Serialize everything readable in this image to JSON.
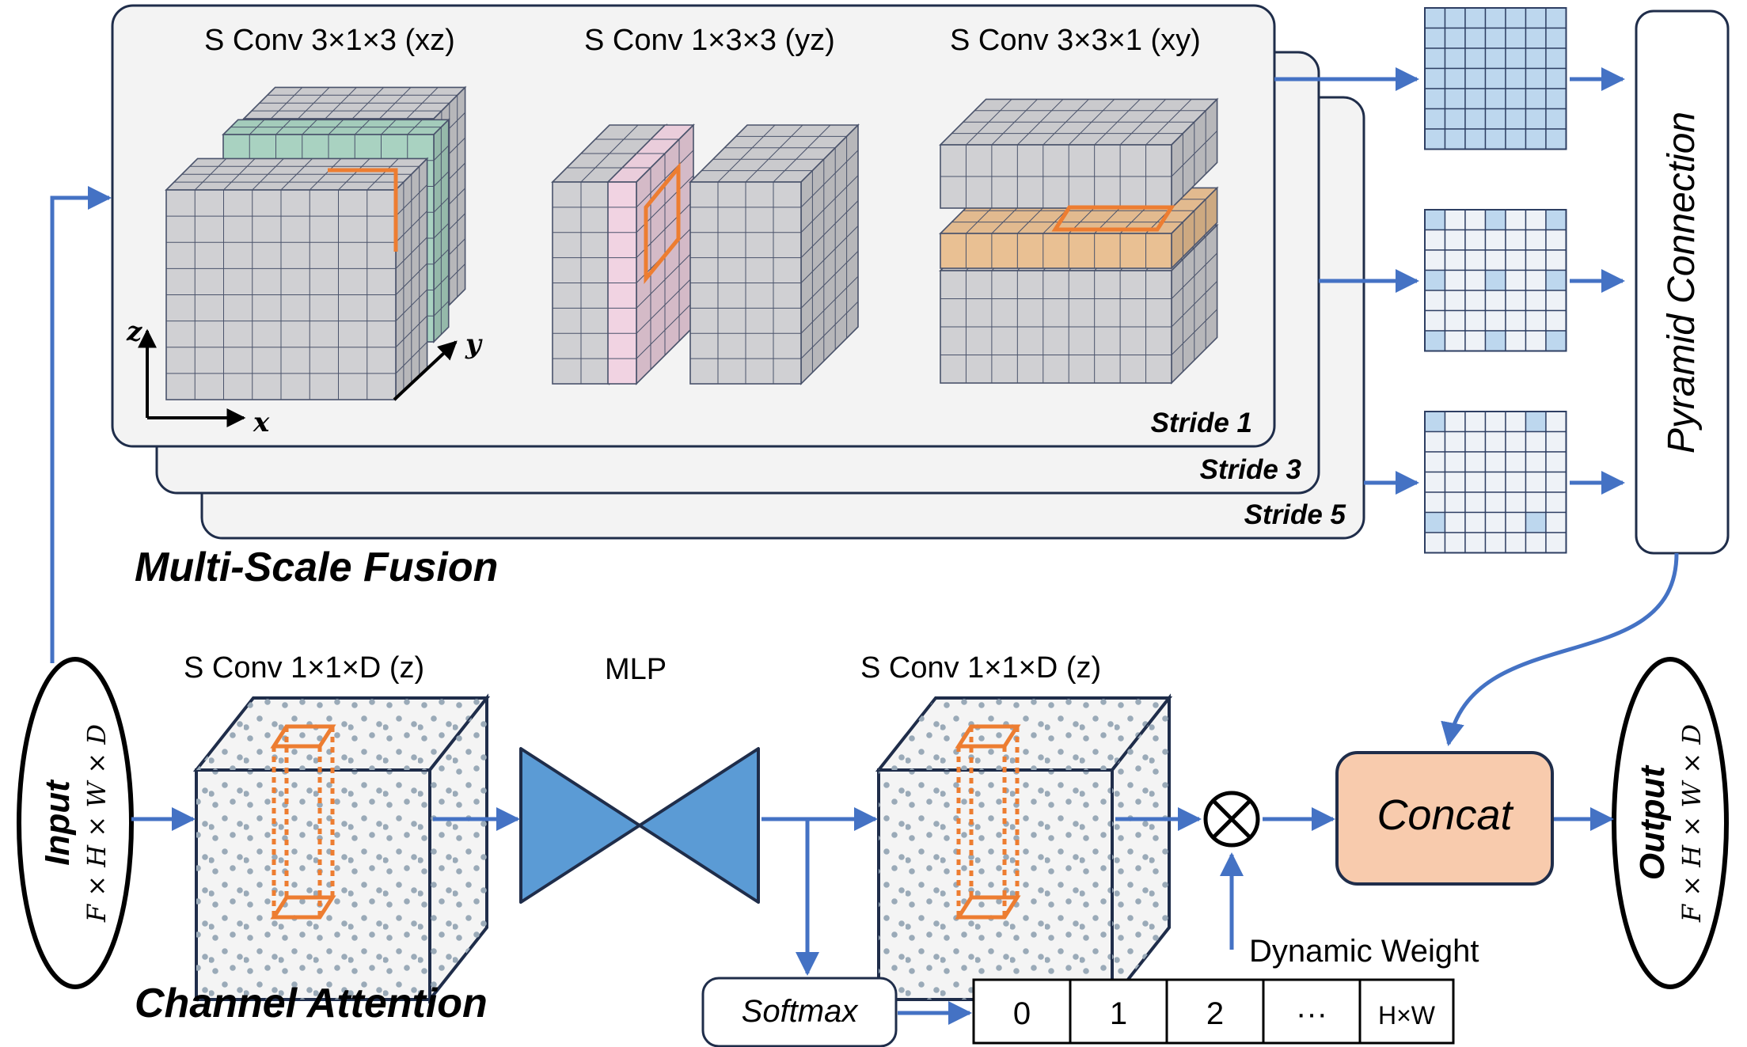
{
  "multi_scale": {
    "section_title": "Multi-Scale Fusion",
    "conv_xz": "S Conv 3×1×3 (xz)",
    "conv_yz": "S Conv 1×3×3 (yz)",
    "conv_xy": "S Conv 3×3×1 (xy)",
    "stride1": "Stride 1",
    "stride3": "Stride 3",
    "stride5": "Stride 5",
    "axis_x": "x",
    "axis_y": "y",
    "axis_z": "z"
  },
  "pyramid": {
    "label": "Pyramid Connection"
  },
  "input": {
    "title": "Input",
    "shape": "F × H × W × D"
  },
  "output": {
    "title": "Output",
    "shape": "F × H × W × D"
  },
  "channel_attention": {
    "section_title": "Channel Attention",
    "conv_left": "S Conv 1×1×D (z)",
    "mlp": "MLP",
    "conv_right": "S Conv 1×1×D (z)",
    "softmax": "Softmax",
    "dynamic_weight": "Dynamic Weight",
    "weights": [
      "0",
      "1",
      "2",
      "···",
      "H×W"
    ],
    "multiply_symbol": "⊗"
  },
  "concat": {
    "label": "Concat"
  },
  "colors": {
    "arrow": "#4472c4",
    "panel_border": "#1f2d4a",
    "cube_grey": "#d0d0d3",
    "green_slice": "#a9d2c1",
    "pink_slice": "#f1d3e2",
    "orange_slice": "#e9c093",
    "kernel_outline": "#ed7d31",
    "grid_fill": "#bdd7ee",
    "mlp_fill": "#5b9bd5",
    "concat_fill": "#f8cbad"
  }
}
